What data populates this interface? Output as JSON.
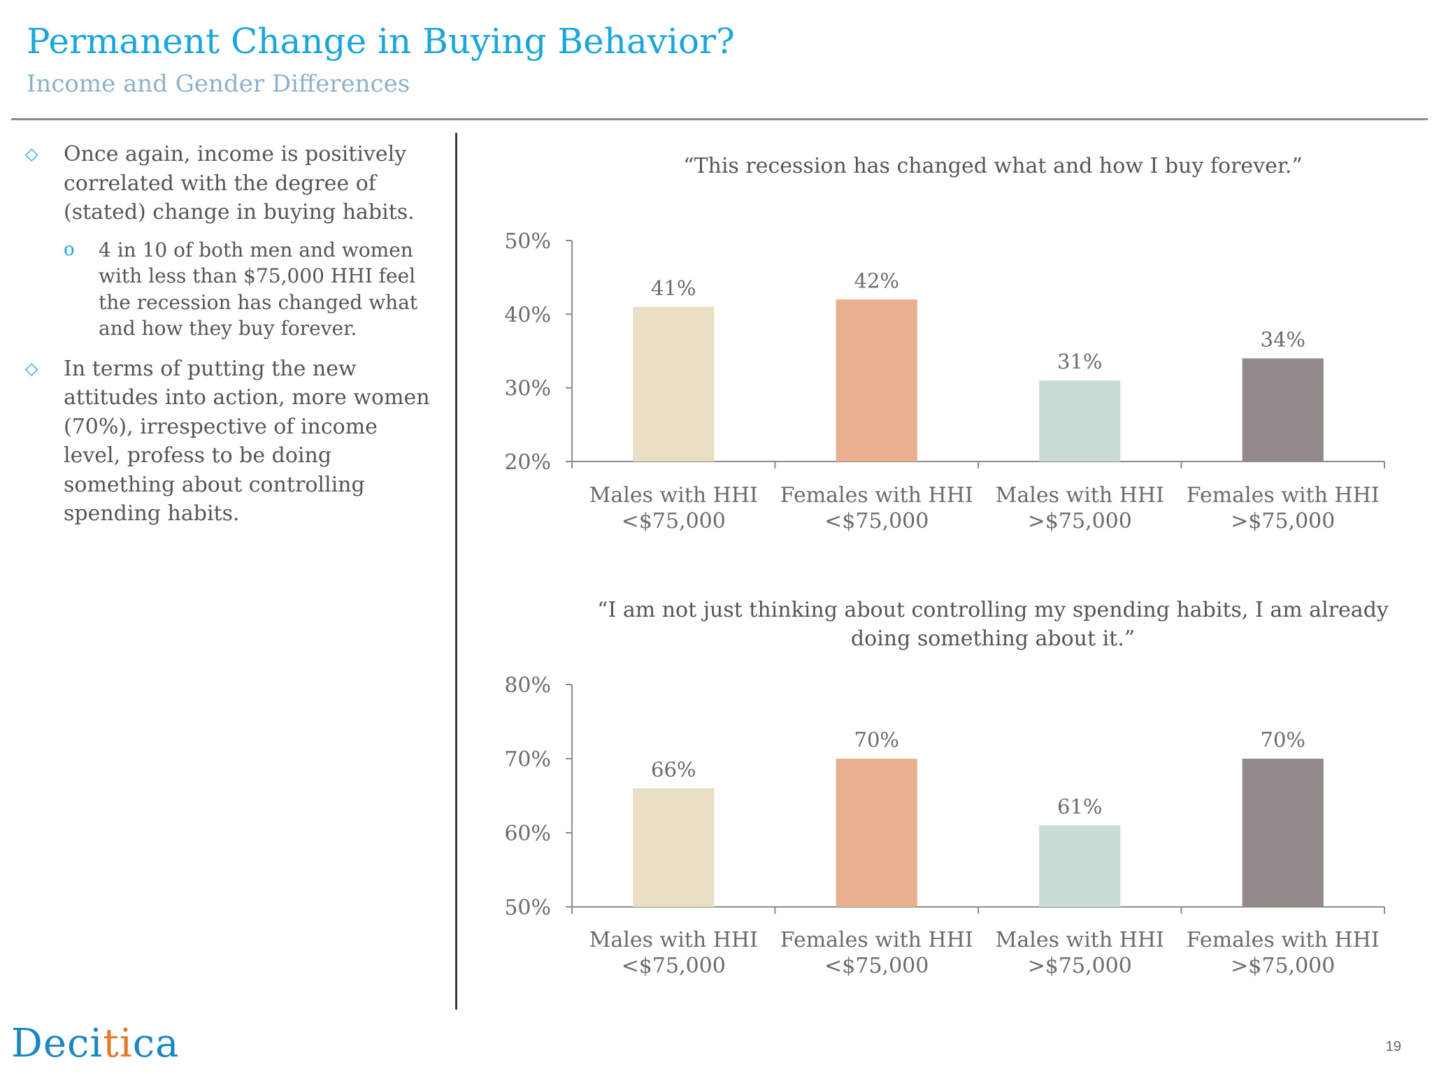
{
  "header": {
    "title": "Permanent Change in Buying Behavior?",
    "subtitle": "Income and Gender Differences"
  },
  "bullets": [
    {
      "text": "Once again, income is positively correlated with the degree of (stated) change in buying habits.",
      "sub": "4 in 10 of both men and women with less than $75,000 HHI  feel the recession has changed what and how they buy forever."
    },
    {
      "text": "In terms of putting the new attitudes into action, more women (70%), irrespective of income level, profess to be doing something about controlling spending habits."
    }
  ],
  "colors": {
    "title": "#1aa6dc",
    "subtitle": "#8fb1c7",
    "bars": [
      "#eadfc5",
      "#e9b090",
      "#c9dcd6",
      "#948a89"
    ]
  },
  "chart_data": [
    {
      "type": "bar",
      "title": "“This recession has changed what and how I buy forever.”",
      "categories": [
        [
          "Males with HHI",
          "<$75,000"
        ],
        [
          "Females with HHI",
          "<$75,000"
        ],
        [
          "Males with HHI",
          ">$75,000"
        ],
        [
          "Females with HHI",
          ">$75,000"
        ]
      ],
      "values": [
        41,
        42,
        31,
        34
      ],
      "value_labels": [
        "41%",
        "42%",
        "31%",
        "34%"
      ],
      "ylim": [
        20,
        50
      ],
      "yticks": [
        20,
        30,
        40,
        50
      ],
      "ytick_labels": [
        "20%",
        "30%",
        "40%",
        "50%"
      ],
      "grid": false,
      "legend": "none"
    },
    {
      "type": "bar",
      "title": "“I  am not just thinking about controlling my spending habits, I am already doing something about it.”",
      "categories": [
        [
          "Males with HHI",
          "<$75,000"
        ],
        [
          "Females with HHI",
          "<$75,000"
        ],
        [
          "Males with HHI",
          ">$75,000"
        ],
        [
          "Females with HHI",
          ">$75,000"
        ]
      ],
      "values": [
        66,
        70,
        61,
        70
      ],
      "value_labels": [
        "66%",
        "70%",
        "61%",
        "70%"
      ],
      "ylim": [
        50,
        80
      ],
      "yticks": [
        50,
        60,
        70,
        80
      ],
      "ytick_labels": [
        "50%",
        "60%",
        "70%",
        "80%"
      ],
      "grid": false,
      "legend": "none"
    }
  ],
  "footer": {
    "logo_text": [
      "Deci",
      "ti",
      "ca"
    ],
    "page_number": "19"
  }
}
